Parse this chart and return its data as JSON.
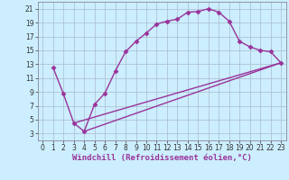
{
  "xlabel": "Windchill (Refroidissement éolien,°C)",
  "bg_color": "#cceeff",
  "grid_color": "#aabbcc",
  "line_color": "#993399",
  "xlim": [
    -0.5,
    23.5
  ],
  "ylim": [
    2,
    22
  ],
  "xticks": [
    0,
    1,
    2,
    3,
    4,
    5,
    6,
    7,
    8,
    9,
    10,
    11,
    12,
    13,
    14,
    15,
    16,
    17,
    18,
    19,
    20,
    21,
    22,
    23
  ],
  "yticks": [
    3,
    5,
    7,
    9,
    11,
    13,
    15,
    17,
    19,
    21
  ],
  "line1_x": [
    1,
    2,
    3,
    4,
    5,
    6,
    7,
    8,
    9,
    10,
    11,
    12,
    13,
    14,
    15,
    16,
    17,
    18,
    19,
    20,
    21,
    22,
    23
  ],
  "line1_y": [
    12.5,
    8.7,
    4.5,
    3.3,
    7.2,
    8.8,
    12.0,
    14.8,
    16.3,
    17.5,
    18.8,
    19.2,
    19.5,
    20.5,
    20.6,
    21.0,
    20.5,
    19.2,
    16.3,
    15.5,
    15.0,
    14.8,
    13.2
  ],
  "line2_x": [
    3,
    23
  ],
  "line2_y": [
    4.5,
    13.2
  ],
  "line3_x": [
    4,
    23
  ],
  "line3_y": [
    3.3,
    13.2
  ],
  "marker": "D",
  "marker_size": 2.5,
  "linewidth": 1.0,
  "tick_fontsize": 5.5,
  "xlabel_fontsize": 6.5
}
